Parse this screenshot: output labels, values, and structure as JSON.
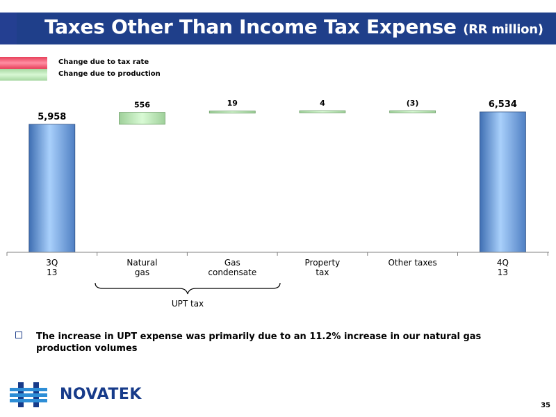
{
  "title": {
    "main": "Taxes Other Than Income Tax Expense",
    "unit": "(RR million)"
  },
  "legend": [
    {
      "label": "Change due to tax rate",
      "color": "#e8405a"
    },
    {
      "label": "Change due to production",
      "color": "#b8e6b3"
    }
  ],
  "chart_data": {
    "type": "bar",
    "subtype": "waterfall",
    "categories": [
      "3Q 13",
      "Natural gas",
      "Gas condensate",
      "Property tax",
      "Other taxes",
      "4Q 13"
    ],
    "values": [
      5958,
      556,
      19,
      4,
      -3,
      6534
    ],
    "data_labels": [
      "5,958",
      "556",
      "19",
      "4",
      "(3)",
      "6,534"
    ],
    "bar_kinds": [
      "total",
      "production",
      "production",
      "production",
      "production",
      "total"
    ],
    "colors": {
      "total": "#7fb2ee",
      "production": "#b8e6b3"
    },
    "group_annotation": {
      "label": "UPT tax",
      "categories": [
        "Natural gas",
        "Gas condensate"
      ]
    }
  },
  "note": "The increase in UPT expense was primarily due to an 11.2% increase in our natural gas production volumes",
  "logo": {
    "text": "NOVATEK",
    "icon": "novatek-logo-icon"
  },
  "page_number": "35"
}
